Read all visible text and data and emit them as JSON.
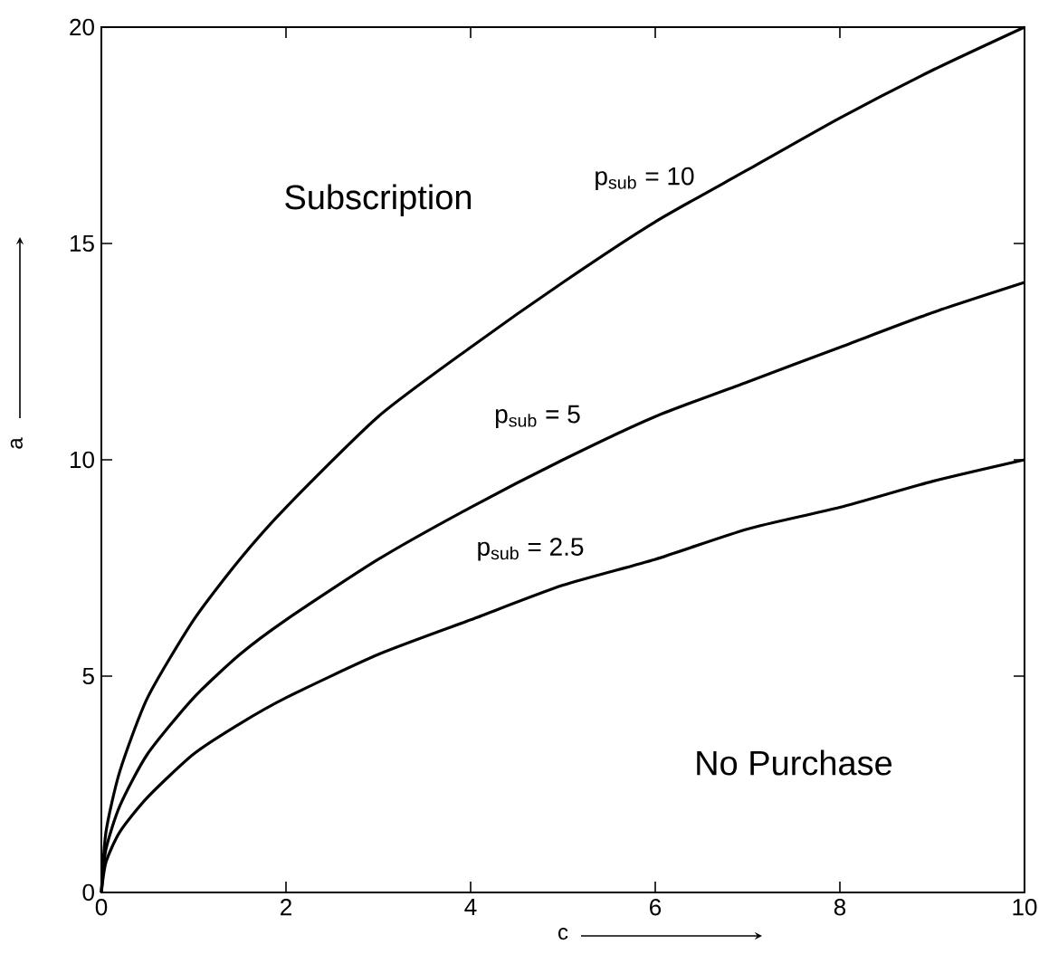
{
  "chart_data": {
    "type": "line",
    "xlabel": "c",
    "ylabel": "a",
    "xlim": [
      0,
      10
    ],
    "ylim": [
      0,
      20
    ],
    "xticks": [
      0,
      2,
      4,
      6,
      8,
      10
    ],
    "yticks": [
      0,
      5,
      10,
      15,
      20
    ],
    "grid": false,
    "annotations": [
      "Subscription",
      "No Purchase"
    ],
    "series": [
      {
        "name": "p$_{sub}$ = 10",
        "color": "#000000",
        "x": [
          0,
          0.05,
          0.2,
          0.5,
          1,
          1.5,
          2,
          3,
          4,
          5,
          6,
          7,
          8,
          9,
          10
        ],
        "values": [
          0,
          1.4,
          2.8,
          4.5,
          6.3,
          7.7,
          8.9,
          11,
          12.6,
          14.1,
          15.5,
          16.7,
          17.9,
          19,
          20
        ]
      },
      {
        "name": "p$_{sub}$ = 5",
        "color": "#000000",
        "x": [
          0,
          0.05,
          0.2,
          0.5,
          1,
          1.5,
          2,
          3,
          4,
          5,
          6,
          7,
          8,
          9,
          10
        ],
        "values": [
          0,
          1,
          2,
          3.2,
          4.5,
          5.5,
          6.3,
          7.7,
          8.9,
          10,
          11,
          11.8,
          12.6,
          13.4,
          14.1
        ]
      },
      {
        "name": "p$_{sub}$ = 2.5",
        "color": "#000000",
        "x": [
          0,
          0.05,
          0.2,
          0.5,
          1,
          1.5,
          2,
          3,
          4,
          5,
          6,
          7,
          8,
          9,
          10
        ],
        "values": [
          0,
          0.7,
          1.4,
          2.2,
          3.2,
          3.9,
          4.5,
          5.5,
          6.3,
          7.1,
          7.7,
          8.4,
          8.9,
          9.5,
          10
        ]
      }
    ]
  }
}
